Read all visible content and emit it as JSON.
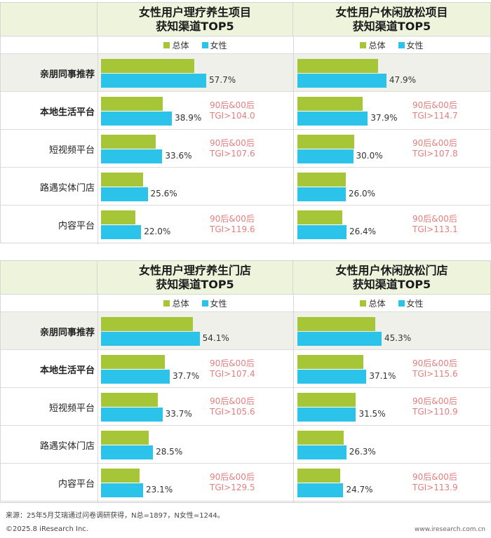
{
  "colors": {
    "total": "#a6c638",
    "female": "#2cc3ea",
    "tgi_text": "#e37f7f",
    "header_bg": "#eef3dc"
  },
  "legend": {
    "total": "总体",
    "female": "女性"
  },
  "categories": [
    "亲朋同事推荐",
    "本地生活平台",
    "短视频平台",
    "路遇实体门店",
    "内容平台"
  ],
  "chart_data": [
    {
      "type": "bar",
      "title": [
        "女性用户理疗养生项目",
        "获知渠道TOP5"
      ],
      "categories": [
        "亲朋同事推荐",
        "本地生活平台",
        "短视频平台",
        "路遇实体门店",
        "内容平台"
      ],
      "series": [
        {
          "name": "总体",
          "values": [
            51,
            34,
            30,
            23,
            19
          ]
        },
        {
          "name": "女性",
          "values": [
            57.7,
            38.9,
            33.6,
            25.6,
            22.0
          ]
        }
      ],
      "value_labels": [
        "57.7%",
        "38.9%",
        "33.6%",
        "25.6%",
        "22.0%"
      ],
      "annotations": [
        null,
        [
          "90后&00后",
          "TGI>104.0"
        ],
        [
          "90后&00后",
          "TGI>107.6"
        ],
        null,
        [
          "90后&00后",
          "TGI>119.6"
        ]
      ]
    },
    {
      "type": "bar",
      "title": [
        "女性用户休闲放松项目",
        "获知渠道TOP5"
      ],
      "categories": [
        "亲朋同事推荐",
        "本地生活平台",
        "短视频平台",
        "路遇实体门店",
        "内容平台"
      ],
      "series": [
        {
          "name": "总体",
          "values": [
            43.5,
            35,
            30.5,
            26,
            24
          ]
        },
        {
          "name": "女性",
          "values": [
            47.9,
            37.9,
            30.0,
            26.0,
            26.4
          ]
        }
      ],
      "value_labels": [
        "47.9%",
        "37.9%",
        "30.0%",
        "26.0%",
        "26.4%"
      ],
      "annotations": [
        null,
        [
          "90后&00后",
          "TGI>114.7"
        ],
        [
          "90后&00后",
          "TGI>107.8"
        ],
        null,
        [
          "90后&00后",
          "TGI>113.1"
        ]
      ]
    },
    {
      "type": "bar",
      "title": [
        "女性用户理疗养生门店",
        "获知渠道TOP5"
      ],
      "categories": [
        "亲朋同事推荐",
        "本地生活平台",
        "短视频平台",
        "路遇实体门店",
        "内容平台"
      ],
      "series": [
        {
          "name": "总体",
          "values": [
            50.5,
            35,
            31,
            26,
            21
          ]
        },
        {
          "name": "女性",
          "values": [
            54.1,
            37.7,
            33.7,
            28.5,
            23.1
          ]
        }
      ],
      "value_labels": [
        "54.1%",
        "37.7%",
        "33.7%",
        "28.5%",
        "23.1%"
      ],
      "annotations": [
        null,
        [
          "90后&00后",
          "TGI>107.4"
        ],
        [
          "90后&00后",
          "TGI>105.6"
        ],
        null,
        [
          "90后&00后",
          "TGI>129.5"
        ]
      ]
    },
    {
      "type": "bar",
      "title": [
        "女性用户休闲放松门店",
        "获知渠道TOP5"
      ],
      "categories": [
        "亲朋同事推荐",
        "本地生活平台",
        "短视频平台",
        "路遇实体门店",
        "内容平台"
      ],
      "series": [
        {
          "name": "总体",
          "values": [
            42,
            35.5,
            31.5,
            25,
            23
          ]
        },
        {
          "name": "女性",
          "values": [
            45.3,
            37.1,
            31.5,
            26.3,
            24.7
          ]
        }
      ],
      "value_labels": [
        "45.3%",
        "37.1%",
        "31.5%",
        "26.3%",
        "24.7%"
      ],
      "annotations": [
        null,
        [
          "90后&00后",
          "TGI>115.6"
        ],
        [
          "90后&00后",
          "TGI>110.9"
        ],
        null,
        [
          "90后&00后",
          "TGI>113.9"
        ]
      ]
    }
  ],
  "footer": {
    "source": "来源：25年5月艾瑞通过问卷调研获得，N总=1897，N女性=1244。",
    "copyright": "©2025.8 iResearch Inc.",
    "website": "www.iresearch.com.cn"
  }
}
